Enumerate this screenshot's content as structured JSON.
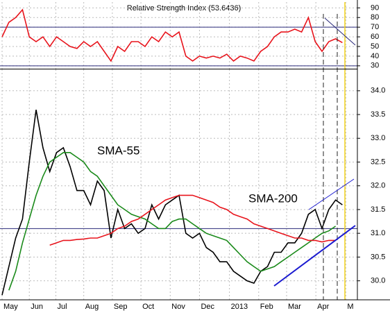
{
  "chart_data": [
    {
      "type": "line",
      "title": "Relative Strength Index (53.6436)",
      "x": [
        0,
        1,
        2,
        3,
        4,
        5,
        6,
        7,
        8,
        9,
        10,
        11,
        12,
        13,
        14,
        15,
        16,
        17,
        18,
        19,
        20,
        21,
        22,
        23,
        24,
        25,
        26,
        27,
        28,
        29,
        30,
        31,
        32,
        33,
        34,
        35,
        36,
        37,
        38,
        39,
        40,
        41,
        42,
        43,
        44,
        45,
        46,
        47,
        48,
        49,
        50
      ],
      "series": [
        {
          "color": "#e8141c",
          "values": [
            60,
            75,
            80,
            88,
            60,
            55,
            60,
            50,
            60,
            55,
            50,
            48,
            55,
            50,
            55,
            45,
            35,
            50,
            45,
            55,
            55,
            50,
            60,
            55,
            65,
            60,
            65,
            40,
            35,
            40,
            38,
            40,
            38,
            42,
            35,
            40,
            38,
            35,
            45,
            50,
            60,
            65,
            65,
            68,
            65,
            80,
            55,
            45,
            55,
            58,
            54
          ]
        }
      ],
      "xlim": [
        0,
        52.2
      ],
      "ylim": [
        27,
        96
      ],
      "yticks": [
        30,
        40,
        50,
        60,
        70,
        80,
        90
      ],
      "levels": [
        70,
        30
      ],
      "level_color": "#2a2a7a"
    },
    {
      "type": "line",
      "x": [
        0,
        1,
        2,
        3,
        4,
        5,
        6,
        7,
        8,
        9,
        10,
        11,
        12,
        13,
        14,
        15,
        16,
        17,
        18,
        19,
        20,
        21,
        22,
        23,
        24,
        25,
        26,
        27,
        28,
        29,
        30,
        31,
        32,
        33,
        34,
        35,
        36,
        37,
        38,
        39,
        40,
        41,
        42,
        43,
        44,
        45,
        46,
        47,
        48,
        49,
        50
      ],
      "series": [
        {
          "color": "#000000",
          "values": [
            29.7,
            30.3,
            30.9,
            31.3,
            32.5,
            33.6,
            32.8,
            32.3,
            32.7,
            32.8,
            32.4,
            31.9,
            31.9,
            31.6,
            32.1,
            31.9,
            30.9,
            31.5,
            31.1,
            31.2,
            31.0,
            31.1,
            31.6,
            31.3,
            31.6,
            31.7,
            31.8,
            31.0,
            30.9,
            31.0,
            30.7,
            30.6,
            30.4,
            30.4,
            30.2,
            30.1,
            30.0,
            29.95,
            30.2,
            30.3,
            30.6,
            30.6,
            30.8,
            30.8,
            31.0,
            31.4,
            31.5,
            31.1,
            31.5,
            31.7,
            31.6
          ]
        },
        {
          "name": "SMA-55",
          "color": "#1a8a1a",
          "values": [
            null,
            29.8,
            30.2,
            30.8,
            31.3,
            31.8,
            32.2,
            32.5,
            32.6,
            32.7,
            32.7,
            32.6,
            32.5,
            32.3,
            32.2,
            32.0,
            31.8,
            31.6,
            31.5,
            31.4,
            31.35,
            31.3,
            31.2,
            31.1,
            31.1,
            31.25,
            31.3,
            31.3,
            31.2,
            31.1,
            31.0,
            30.95,
            30.9,
            30.85,
            30.7,
            30.55,
            30.4,
            30.3,
            30.2,
            30.25,
            30.3,
            30.4,
            30.5,
            30.6,
            30.7,
            30.8,
            30.9,
            31.0,
            31.05,
            31.15,
            null
          ]
        },
        {
          "name": "SMA-200",
          "color": "#e8141c",
          "values": [
            null,
            null,
            null,
            null,
            null,
            null,
            null,
            30.75,
            30.8,
            30.85,
            30.85,
            30.87,
            30.88,
            30.9,
            30.9,
            30.95,
            31.0,
            31.1,
            31.15,
            31.25,
            31.3,
            31.4,
            31.5,
            31.6,
            31.7,
            31.75,
            31.8,
            31.8,
            31.8,
            31.75,
            31.7,
            31.65,
            31.55,
            31.5,
            31.4,
            31.35,
            31.3,
            31.2,
            31.15,
            31.1,
            31.05,
            31.0,
            30.95,
            30.9,
            30.9,
            30.85,
            30.85,
            30.82,
            30.85,
            30.85,
            null
          ]
        }
      ],
      "xlim": [
        0,
        52.2
      ],
      "ylim": [
        29.6,
        34.45
      ],
      "yticks": [
        {
          "value": 30,
          "label": "30.0"
        },
        30.5,
        {
          "value": 31,
          "label": "31.0"
        },
        31.5,
        {
          "value": 32,
          "label": "32.0"
        },
        32.5,
        {
          "value": 33,
          "label": "33.0"
        },
        33.5,
        {
          "value": 34,
          "label": "34.0"
        }
      ],
      "xticks": [
        {
          "value": 0,
          "label": "May"
        },
        {
          "value": 4,
          "label": "Jun"
        },
        {
          "value": 7.9,
          "label": "Jul"
        },
        {
          "value": 12,
          "label": "Aug"
        },
        {
          "value": 16.2,
          "label": "Sep"
        },
        {
          "value": 20.4,
          "label": "Oct"
        },
        {
          "value": 24.7,
          "label": "Nov"
        },
        {
          "value": 29,
          "label": "Dec"
        },
        {
          "value": 33.4,
          "label": "2013"
        },
        {
          "value": 37.7,
          "label": "Feb"
        },
        {
          "value": 41.8,
          "label": "Mar"
        },
        {
          "value": 46.1,
          "label": "Apr"
        },
        {
          "value": 50.5,
          "label": "M"
        }
      ],
      "level": 31.1,
      "level_color": "#2a2a7a",
      "grid": true
    }
  ]
}
